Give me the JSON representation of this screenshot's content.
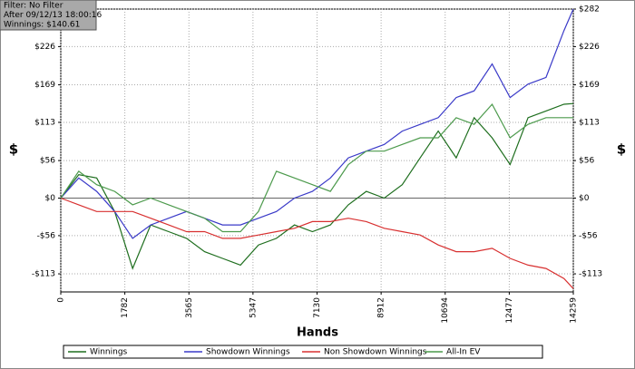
{
  "chart_data": {
    "type": "line",
    "info_lines": [
      "Filter: No Filter",
      "After 09/12/13 18:00:16",
      "Winnings: $140.61"
    ],
    "x_label": "Hands",
    "y_label": "$",
    "x": [
      0,
      500,
      1000,
      1500,
      2000,
      2500,
      3000,
      3500,
      4000,
      4500,
      5000,
      5500,
      6000,
      6500,
      7000,
      7500,
      8000,
      8500,
      9000,
      9500,
      10000,
      10500,
      11000,
      11500,
      12000,
      12500,
      13000,
      13500,
      14000,
      14259
    ],
    "series": [
      {
        "name": "Winnings",
        "color": "#1e6e1e",
        "values": [
          0,
          35,
          30,
          -20,
          -105,
          -40,
          -50,
          -60,
          -80,
          -90,
          -100,
          -70,
          -60,
          -40,
          -50,
          -40,
          -10,
          10,
          0,
          20,
          60,
          100,
          60,
          120,
          90,
          50,
          120,
          130,
          140,
          141
        ]
      },
      {
        "name": "Showdown Winnings",
        "color": "#3a3ac8",
        "values": [
          0,
          30,
          10,
          -20,
          -60,
          -40,
          -30,
          -20,
          -30,
          -40,
          -40,
          -30,
          -20,
          0,
          10,
          30,
          60,
          70,
          80,
          100,
          110,
          120,
          150,
          160,
          200,
          150,
          170,
          180,
          250,
          282
        ]
      },
      {
        "name": "Non Showdown Winnings",
        "color": "#d83030",
        "values": [
          0,
          -10,
          -20,
          -20,
          -20,
          -30,
          -40,
          -50,
          -50,
          -60,
          -60,
          -55,
          -50,
          -45,
          -35,
          -35,
          -30,
          -35,
          -45,
          -50,
          -55,
          -70,
          -80,
          -80,
          -75,
          -90,
          -100,
          -105,
          -120,
          -135
        ]
      },
      {
        "name": "All-In EV",
        "color": "#4c9a4c",
        "values": [
          0,
          40,
          20,
          10,
          -10,
          0,
          -10,
          -20,
          -30,
          -50,
          -50,
          -20,
          40,
          30,
          20,
          10,
          50,
          70,
          70,
          80,
          90,
          90,
          120,
          110,
          140,
          90,
          110,
          120,
          120,
          120
        ]
      }
    ],
    "xlim": [
      0,
      14259
    ],
    "xticks": [
      0,
      1782,
      3565,
      5347,
      7130,
      8912,
      10694,
      12477,
      14259
    ],
    "ylim": [
      -140,
      282
    ],
    "yticks": [
      {
        "value": -113,
        "label": "-$113"
      },
      {
        "value": -56,
        "label": "-$56"
      },
      {
        "value": 0,
        "label": "$0"
      },
      {
        "value": 56,
        "label": "$56"
      },
      {
        "value": 113,
        "label": "$113"
      },
      {
        "value": 169,
        "label": "$169"
      },
      {
        "value": 226,
        "label": "$226"
      },
      {
        "value": 282,
        "label": "$282"
      }
    ],
    "grid": true,
    "legend": "bottom"
  }
}
